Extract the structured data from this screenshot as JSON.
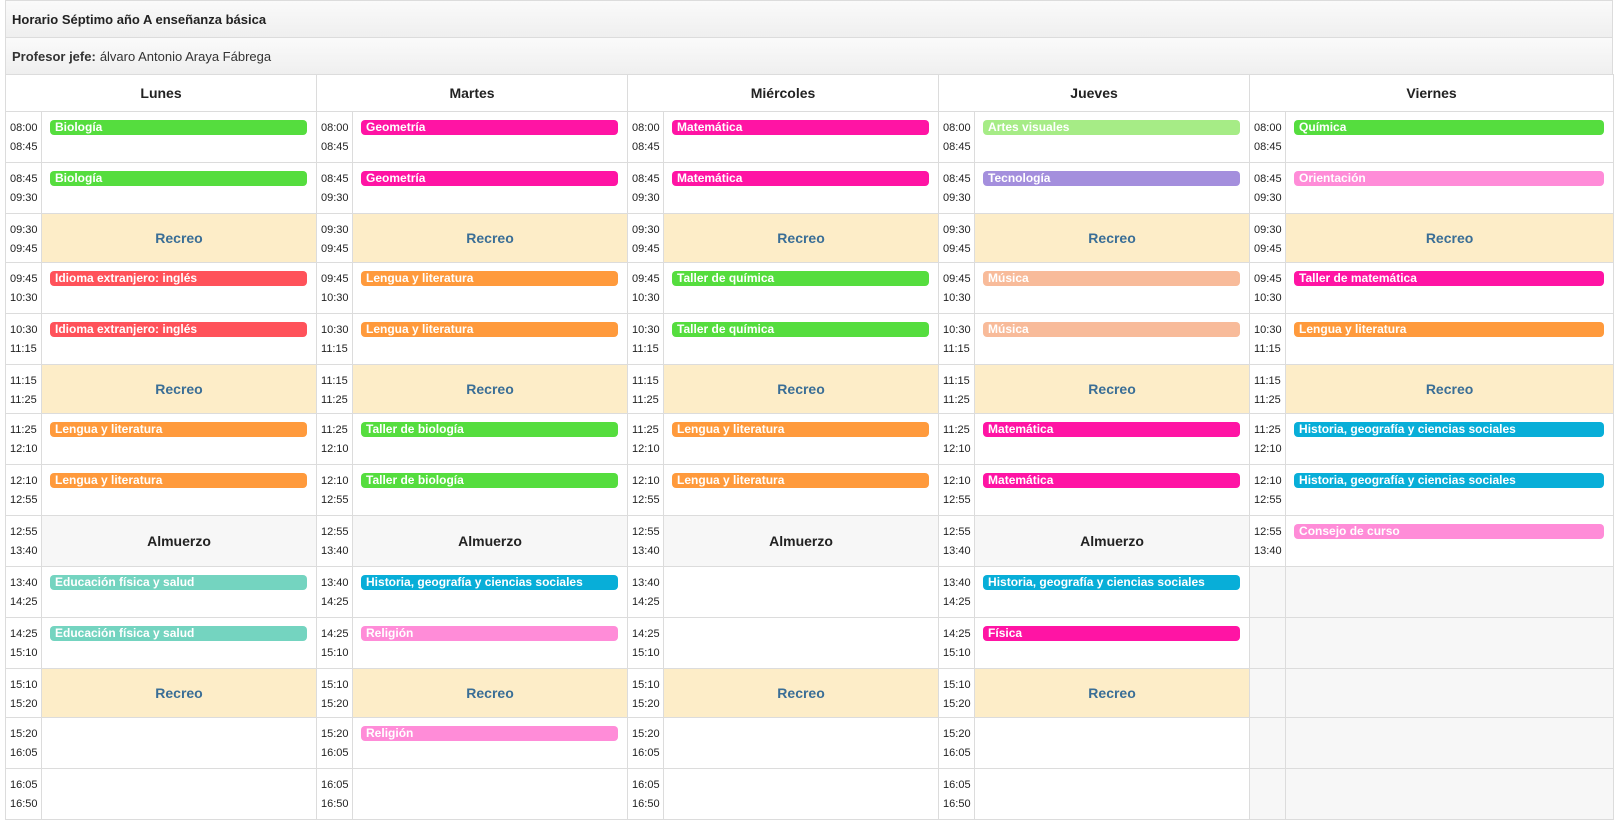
{
  "title": "Horario Séptimo año A enseñanza básica",
  "teacher": {
    "label": "Profesor jefe:",
    "name": "álvaro Antonio Araya Fábrega"
  },
  "days": [
    "Lunes",
    "Martes",
    "Miércoles",
    "Jueves",
    "Viernes"
  ],
  "colors": {
    "biologia": "#55dd3e",
    "geometria": "#ff14a4",
    "matematica": "#ff14a4",
    "artes": "#a6ec86",
    "quimica": "#55dd3e",
    "tecnologia": "#a48fdd",
    "orientacion": "#ff8cd8",
    "ingles": "#ff525a",
    "lengua": "#ff9a3c",
    "musica": "#f8bb9a",
    "historia": "#08aed8",
    "edfisica": "#74d4c0",
    "religion": "#ff8cd8",
    "fisica": "#ff14a4",
    "consejo": "#ff8cd8",
    "recreo_bg": "#fdedc8",
    "recreo_text": "#3a6e96"
  },
  "rows": [
    {
      "type": "class",
      "start": "08:00",
      "end": "08:45",
      "cells": [
        {
          "text": "Biología",
          "color": "#55dd3e"
        },
        {
          "text": "Geometría",
          "color": "#ff14a4"
        },
        {
          "text": "Matemática",
          "color": "#ff14a4"
        },
        {
          "text": "Artes visuales",
          "color": "#a6ec86"
        },
        {
          "text": "Química",
          "color": "#55dd3e"
        }
      ]
    },
    {
      "type": "class",
      "start": "08:45",
      "end": "09:30",
      "cells": [
        {
          "text": "Biología",
          "color": "#55dd3e"
        },
        {
          "text": "Geometría",
          "color": "#ff14a4"
        },
        {
          "text": "Matemática",
          "color": "#ff14a4"
        },
        {
          "text": "Tecnología",
          "color": "#a48fdd"
        },
        {
          "text": "Orientación",
          "color": "#ff8cd8"
        }
      ]
    },
    {
      "type": "break",
      "start": "09:30",
      "end": "09:45",
      "cells": [
        {
          "label": "Recreo",
          "kind": "recreo"
        },
        {
          "label": "Recreo",
          "kind": "recreo"
        },
        {
          "label": "Recreo",
          "kind": "recreo"
        },
        {
          "label": "Recreo",
          "kind": "recreo"
        },
        {
          "label": "Recreo",
          "kind": "recreo"
        }
      ]
    },
    {
      "type": "class",
      "start": "09:45",
      "end": "10:30",
      "cells": [
        {
          "text": "Idioma extranjero: inglés",
          "color": "#ff525a"
        },
        {
          "text": "Lengua y literatura",
          "color": "#ff9a3c"
        },
        {
          "text": "Taller de química",
          "color": "#55dd3e"
        },
        {
          "text": "Música",
          "color": "#f8bb9a"
        },
        {
          "text": "Taller de matemática",
          "color": "#ff14a4"
        }
      ]
    },
    {
      "type": "class",
      "start": "10:30",
      "end": "11:15",
      "cells": [
        {
          "text": "Idioma extranjero: inglés",
          "color": "#ff525a"
        },
        {
          "text": "Lengua y literatura",
          "color": "#ff9a3c"
        },
        {
          "text": "Taller de química",
          "color": "#55dd3e"
        },
        {
          "text": "Música",
          "color": "#f8bb9a"
        },
        {
          "text": "Lengua y literatura",
          "color": "#ff9a3c"
        }
      ]
    },
    {
      "type": "break",
      "start": "11:15",
      "end": "11:25",
      "cells": [
        {
          "label": "Recreo",
          "kind": "recreo"
        },
        {
          "label": "Recreo",
          "kind": "recreo"
        },
        {
          "label": "Recreo",
          "kind": "recreo"
        },
        {
          "label": "Recreo",
          "kind": "recreo"
        },
        {
          "label": "Recreo",
          "kind": "recreo"
        }
      ]
    },
    {
      "type": "class",
      "start": "11:25",
      "end": "12:10",
      "cells": [
        {
          "text": "Lengua y literatura",
          "color": "#ff9a3c"
        },
        {
          "text": "Taller de biología",
          "color": "#55dd3e"
        },
        {
          "text": "Lengua y literatura",
          "color": "#ff9a3c"
        },
        {
          "text": "Matemática",
          "color": "#ff14a4"
        },
        {
          "text": "Historia, geografía y ciencias sociales",
          "color": "#08aed8"
        }
      ]
    },
    {
      "type": "class",
      "start": "12:10",
      "end": "12:55",
      "cells": [
        {
          "text": "Lengua y literatura",
          "color": "#ff9a3c"
        },
        {
          "text": "Taller de biología",
          "color": "#55dd3e"
        },
        {
          "text": "Lengua y literatura",
          "color": "#ff9a3c"
        },
        {
          "text": "Matemática",
          "color": "#ff14a4"
        },
        {
          "text": "Historia, geografía y ciencias sociales",
          "color": "#08aed8"
        }
      ]
    },
    {
      "type": "class",
      "start": "12:55",
      "end": "13:40",
      "cells": [
        {
          "label": "Almuerzo",
          "kind": "almuerzo"
        },
        {
          "label": "Almuerzo",
          "kind": "almuerzo"
        },
        {
          "label": "Almuerzo",
          "kind": "almuerzo"
        },
        {
          "label": "Almuerzo",
          "kind": "almuerzo"
        },
        {
          "text": "Consejo de curso",
          "color": "#ff8cd8"
        }
      ]
    },
    {
      "type": "class",
      "start": "13:40",
      "end": "14:25",
      "cells": [
        {
          "text": "Educación física y salud",
          "color": "#74d4c0"
        },
        {
          "text": "Historia, geografía y ciencias sociales",
          "color": "#08aed8"
        },
        {
          "kind": "empty"
        },
        {
          "text": "Historia, geografía y ciencias sociales",
          "color": "#08aed8"
        },
        {
          "kind": "blank"
        }
      ]
    },
    {
      "type": "class",
      "start": "14:25",
      "end": "15:10",
      "cells": [
        {
          "text": "Educación física y salud",
          "color": "#74d4c0"
        },
        {
          "text": "Religión",
          "color": "#ff8cd8"
        },
        {
          "kind": "empty"
        },
        {
          "text": "Física",
          "color": "#ff14a4"
        },
        {
          "kind": "blank"
        }
      ]
    },
    {
      "type": "break",
      "start": "15:10",
      "end": "15:20",
      "cells": [
        {
          "label": "Recreo",
          "kind": "recreo"
        },
        {
          "label": "Recreo",
          "kind": "recreo"
        },
        {
          "label": "Recreo",
          "kind": "recreo"
        },
        {
          "label": "Recreo",
          "kind": "recreo"
        },
        {
          "kind": "blank"
        }
      ]
    },
    {
      "type": "class",
      "start": "15:20",
      "end": "16:05",
      "cells": [
        {
          "kind": "empty"
        },
        {
          "text": "Religión",
          "color": "#ff8cd8"
        },
        {
          "kind": "empty"
        },
        {
          "kind": "empty"
        },
        {
          "kind": "blank"
        }
      ]
    },
    {
      "type": "class",
      "start": "16:05",
      "end": "16:50",
      "cells": [
        {
          "kind": "empty"
        },
        {
          "kind": "empty"
        },
        {
          "kind": "empty"
        },
        {
          "kind": "empty"
        },
        {
          "kind": "blank"
        }
      ]
    }
  ]
}
